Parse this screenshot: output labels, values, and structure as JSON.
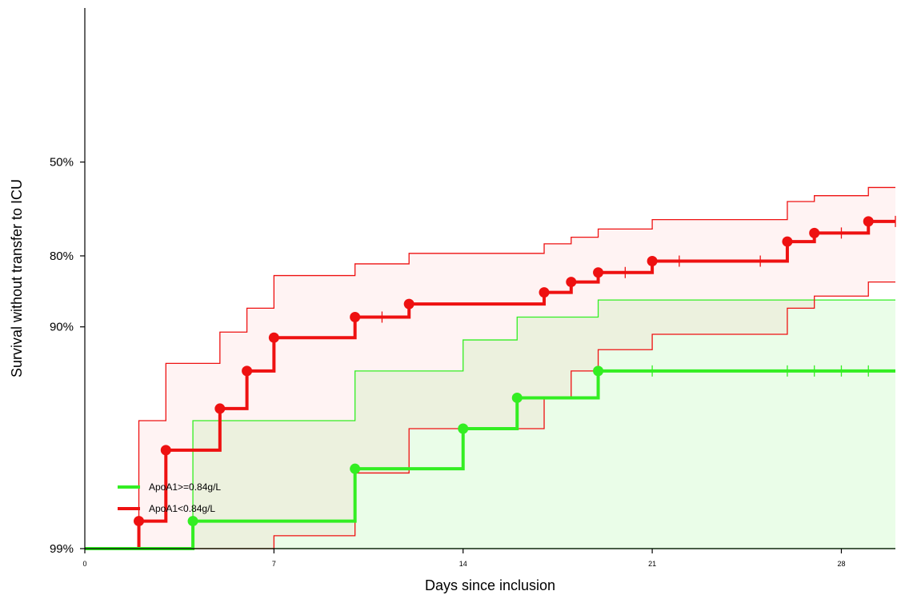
{
  "chart_data": {
    "type": "line",
    "subtype": "kaplan-meier step survival curves with confidence bands",
    "title": "",
    "xlabel": "Days since inclusion",
    "ylabel": "Survival without transfer to ICU",
    "x_ticks": [
      0,
      7,
      14,
      21,
      28
    ],
    "y_ticks": [
      {
        "value": 0.99,
        "label": "99%"
      },
      {
        "value": 0.9,
        "label": "90%"
      },
      {
        "value": 0.8,
        "label": "80%"
      },
      {
        "value": 0.5,
        "label": "50%"
      }
    ],
    "xlim": [
      0,
      30
    ],
    "ylim": [
      0.5,
      1.0
    ],
    "y_scale": "log(1 - survival) (complementary log)",
    "grid": false,
    "legend_position": "bottom-left",
    "series": [
      {
        "name": "ApoA1>=0.84g/L",
        "color": "#33ee22",
        "band_color": "#33ee22",
        "steps": [
          [
            0,
            0.995
          ],
          [
            4,
            0.985
          ],
          [
            10,
            0.975
          ],
          [
            14,
            0.963
          ],
          [
            16,
            0.95
          ],
          [
            19,
            0.935
          ],
          [
            30,
            0.935
          ]
        ],
        "events": [
          [
            4,
            0.985
          ],
          [
            10,
            0.975
          ],
          [
            14,
            0.963
          ],
          [
            16,
            0.95
          ],
          [
            19,
            0.935
          ]
        ],
        "censors": [
          [
            21,
            0.935
          ],
          [
            26,
            0.935
          ],
          [
            27,
            0.935
          ],
          [
            28,
            0.935
          ],
          [
            29,
            0.935
          ]
        ],
        "ci_upper": [
          [
            0,
            0.995
          ],
          [
            4,
            0.995
          ],
          [
            6,
            0.994
          ],
          [
            16,
            0.993
          ],
          [
            19,
            0.99
          ],
          [
            30,
            0.99
          ]
        ],
        "ci_lower": [
          [
            0,
            0.995
          ],
          [
            4,
            0.96
          ],
          [
            10,
            0.935
          ],
          [
            14,
            0.912
          ],
          [
            16,
            0.89
          ],
          [
            19,
            0.87
          ],
          [
            30,
            0.87
          ]
        ]
      },
      {
        "name": "ApoA1<0.84g/L",
        "color": "#ee1111",
        "band_color": "#ff9999",
        "steps": [
          [
            0,
            0.995
          ],
          [
            2,
            0.985
          ],
          [
            3,
            0.97
          ],
          [
            5,
            0.955
          ],
          [
            6,
            0.935
          ],
          [
            7,
            0.91
          ],
          [
            10,
            0.89
          ],
          [
            12,
            0.875
          ],
          [
            17,
            0.86
          ],
          [
            18,
            0.845
          ],
          [
            19,
            0.83
          ],
          [
            21,
            0.81
          ],
          [
            26,
            0.77
          ],
          [
            27,
            0.75
          ],
          [
            29,
            0.72
          ],
          [
            30,
            0.72
          ]
        ],
        "events": [
          [
            2,
            0.985
          ],
          [
            3,
            0.97
          ],
          [
            5,
            0.955
          ],
          [
            6,
            0.935
          ],
          [
            7,
            0.91
          ],
          [
            10,
            0.89
          ],
          [
            12,
            0.875
          ],
          [
            17,
            0.86
          ],
          [
            18,
            0.845
          ],
          [
            19,
            0.83
          ],
          [
            21,
            0.81
          ],
          [
            26,
            0.77
          ],
          [
            27,
            0.75
          ],
          [
            29,
            0.72
          ]
        ],
        "censors": [
          [
            11,
            0.89
          ],
          [
            20,
            0.83
          ],
          [
            22,
            0.81
          ],
          [
            25,
            0.81
          ],
          [
            28,
            0.75
          ],
          [
            30,
            0.72
          ]
        ],
        "ci_upper": [
          [
            0,
            0.995
          ],
          [
            5,
            0.993
          ],
          [
            7,
            0.987
          ],
          [
            10,
            0.976
          ],
          [
            12,
            0.963
          ],
          [
            17,
            0.95
          ],
          [
            18,
            0.935
          ],
          [
            19,
            0.92
          ],
          [
            21,
            0.907
          ],
          [
            26,
            0.88
          ],
          [
            27,
            0.865
          ],
          [
            29,
            0.845
          ],
          [
            30,
            0.845
          ]
        ],
        "ci_lower": [
          [
            0,
            0.995
          ],
          [
            2,
            0.96
          ],
          [
            3,
            0.93
          ],
          [
            5,
            0.905
          ],
          [
            6,
            0.88
          ],
          [
            7,
            0.835
          ],
          [
            10,
            0.815
          ],
          [
            12,
            0.795
          ],
          [
            17,
            0.775
          ],
          [
            18,
            0.76
          ],
          [
            19,
            0.74
          ],
          [
            21,
            0.715
          ],
          [
            26,
            0.66
          ],
          [
            27,
            0.64
          ],
          [
            29,
            0.61
          ],
          [
            30,
            0.61
          ]
        ]
      }
    ]
  }
}
